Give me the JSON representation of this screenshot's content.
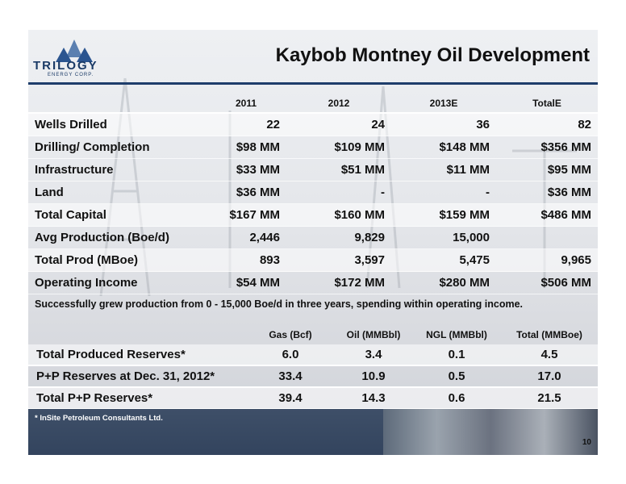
{
  "header": {
    "logo_text": "TRILOGY",
    "logo_subtext": "ENERGY CORP.",
    "title": "Kaybob Montney Oil Development"
  },
  "capital_table": {
    "columns": [
      "2011",
      "2012",
      "2013E",
      "TotalE"
    ],
    "rows": [
      {
        "label": "Wells Drilled",
        "values": [
          "22",
          "24",
          "36",
          "82"
        ]
      },
      {
        "label": "Drilling/ Completion",
        "values": [
          "$98 MM",
          "$109 MM",
          "$148 MM",
          "$356 MM"
        ]
      },
      {
        "label": "Infrastructure",
        "values": [
          "$33 MM",
          "$51 MM",
          "$11 MM",
          "$95 MM"
        ]
      },
      {
        "label": "Land",
        "values": [
          "$36 MM",
          "-",
          "-",
          "$36 MM"
        ]
      },
      {
        "label": "Total Capital",
        "values": [
          "$167 MM",
          "$160 MM",
          "$159 MM",
          "$486 MM"
        ]
      },
      {
        "label": "Avg Production (Boe/d)",
        "values": [
          "2,446",
          "9,829",
          "15,000",
          ""
        ]
      },
      {
        "label": "Total Prod (MBoe)",
        "values": [
          "893",
          "3,597",
          "5,475",
          "9,965"
        ]
      },
      {
        "label": "Operating Income",
        "values": [
          "$54 MM",
          "$172 MM",
          "$280 MM",
          "$506 MM"
        ]
      }
    ]
  },
  "note": "Successfully grew production from 0 - 15,000 Boe/d in three years, spending within operating income.",
  "reserves_table": {
    "columns": [
      "Gas (Bcf)",
      "Oil (MMBbl)",
      "NGL (MMBbl)",
      "Total (MMBoe)"
    ],
    "rows": [
      {
        "label": "Total Produced Reserves*",
        "values": [
          "6.0",
          "3.4",
          "0.1",
          "4.5"
        ]
      },
      {
        "label": "P+P Reserves at Dec. 31, 2012*",
        "values": [
          "33.4",
          "10.9",
          "0.5",
          "17.0"
        ]
      },
      {
        "label": "Total P+P Reserves*",
        "values": [
          "39.4",
          "14.3",
          "0.6",
          "21.5"
        ]
      }
    ]
  },
  "footnote": "* InSite Petroleum Consultants Ltd.",
  "page_number": "10",
  "colors": {
    "brand_navy": "#1e3d6b",
    "band_light": "#ffffff"
  }
}
